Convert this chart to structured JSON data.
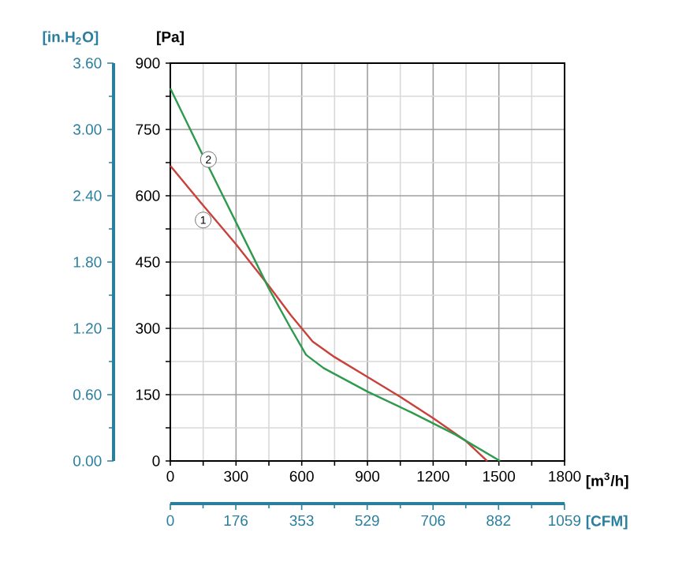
{
  "chart_data": {
    "type": "line",
    "xlabel": "[m$^{3}$/h]",
    "ylabel": "[Pa]",
    "y2label": "[in.H$_{2}$O]",
    "x2label": "[CFM]",
    "series": [
      {
        "color": "#c8413a",
        "x": [
          0,
          150,
          300,
          450,
          550,
          650,
          750,
          900,
          1050,
          1200,
          1350,
          1447
        ],
        "values": [
          668,
          578,
          490,
          396,
          330,
          270,
          235,
          190,
          145,
          97,
          45,
          0
        ]
      },
      {
        "color": "#2e9a4e",
        "x": [
          0,
          150,
          300,
          450,
          550,
          620,
          700,
          900,
          1100,
          1300,
          1505
        ],
        "values": [
          843,
          690,
          540,
          390,
          300,
          240,
          210,
          157,
          110,
          60,
          0
        ]
      }
    ],
    "annotations": [
      {
        "text": "1",
        "x": 150,
        "y": 545
      },
      {
        "text": "2",
        "x": 174,
        "y": 682
      }
    ],
    "xlim": [
      0,
      1800
    ],
    "ylim": [
      0,
      900
    ],
    "xticks": [
      0,
      {
        "value": 150,
        "label": null
      },
      300,
      {
        "value": 450,
        "label": null
      },
      600,
      {
        "value": 750,
        "label": null
      },
      900,
      {
        "value": 1050,
        "label": null
      },
      1200,
      {
        "value": 1350,
        "label": null
      },
      1500,
      {
        "value": 1650,
        "label": null
      },
      1800
    ],
    "yticks": [
      0,
      {
        "value": 75,
        "label": null
      },
      150,
      {
        "value": 225,
        "label": null
      },
      300,
      {
        "value": 375,
        "label": null
      },
      450,
      {
        "value": 525,
        "label": null
      },
      600,
      {
        "value": 675,
        "label": null
      },
      750,
      {
        "value": 825,
        "label": null
      },
      900
    ],
    "y2lim": [
      0,
      3.6
    ],
    "y2ticks": [
      {
        "value": 0,
        "label": "0.00"
      },
      {
        "value": 0.3,
        "label": null
      },
      {
        "value": 0.6,
        "label": "0.60"
      },
      {
        "value": 0.9,
        "label": null
      },
      {
        "value": 1.2,
        "label": "1.20"
      },
      {
        "value": 1.5,
        "label": null
      },
      {
        "value": 1.8,
        "label": "1.80"
      },
      {
        "value": 2.1,
        "label": null
      },
      {
        "value": 2.4,
        "label": "2.40"
      },
      {
        "value": 2.7,
        "label": null
      },
      {
        "value": 3.0,
        "label": "3.00"
      },
      {
        "value": 3.3,
        "label": null
      },
      {
        "value": 3.6,
        "label": "3.60"
      }
    ],
    "x2lim": [
      0,
      1059.4
    ],
    "x2ticks": [
      0,
      {
        "value": 88,
        "label": null
      },
      176,
      {
        "value": 265,
        "label": null
      },
      353,
      {
        "value": 441,
        "label": null
      },
      529,
      {
        "value": 618,
        "label": null
      },
      706,
      {
        "value": 794,
        "label": null
      },
      882,
      {
        "value": 971,
        "label": null
      },
      1059
    ],
    "grid": true
  }
}
